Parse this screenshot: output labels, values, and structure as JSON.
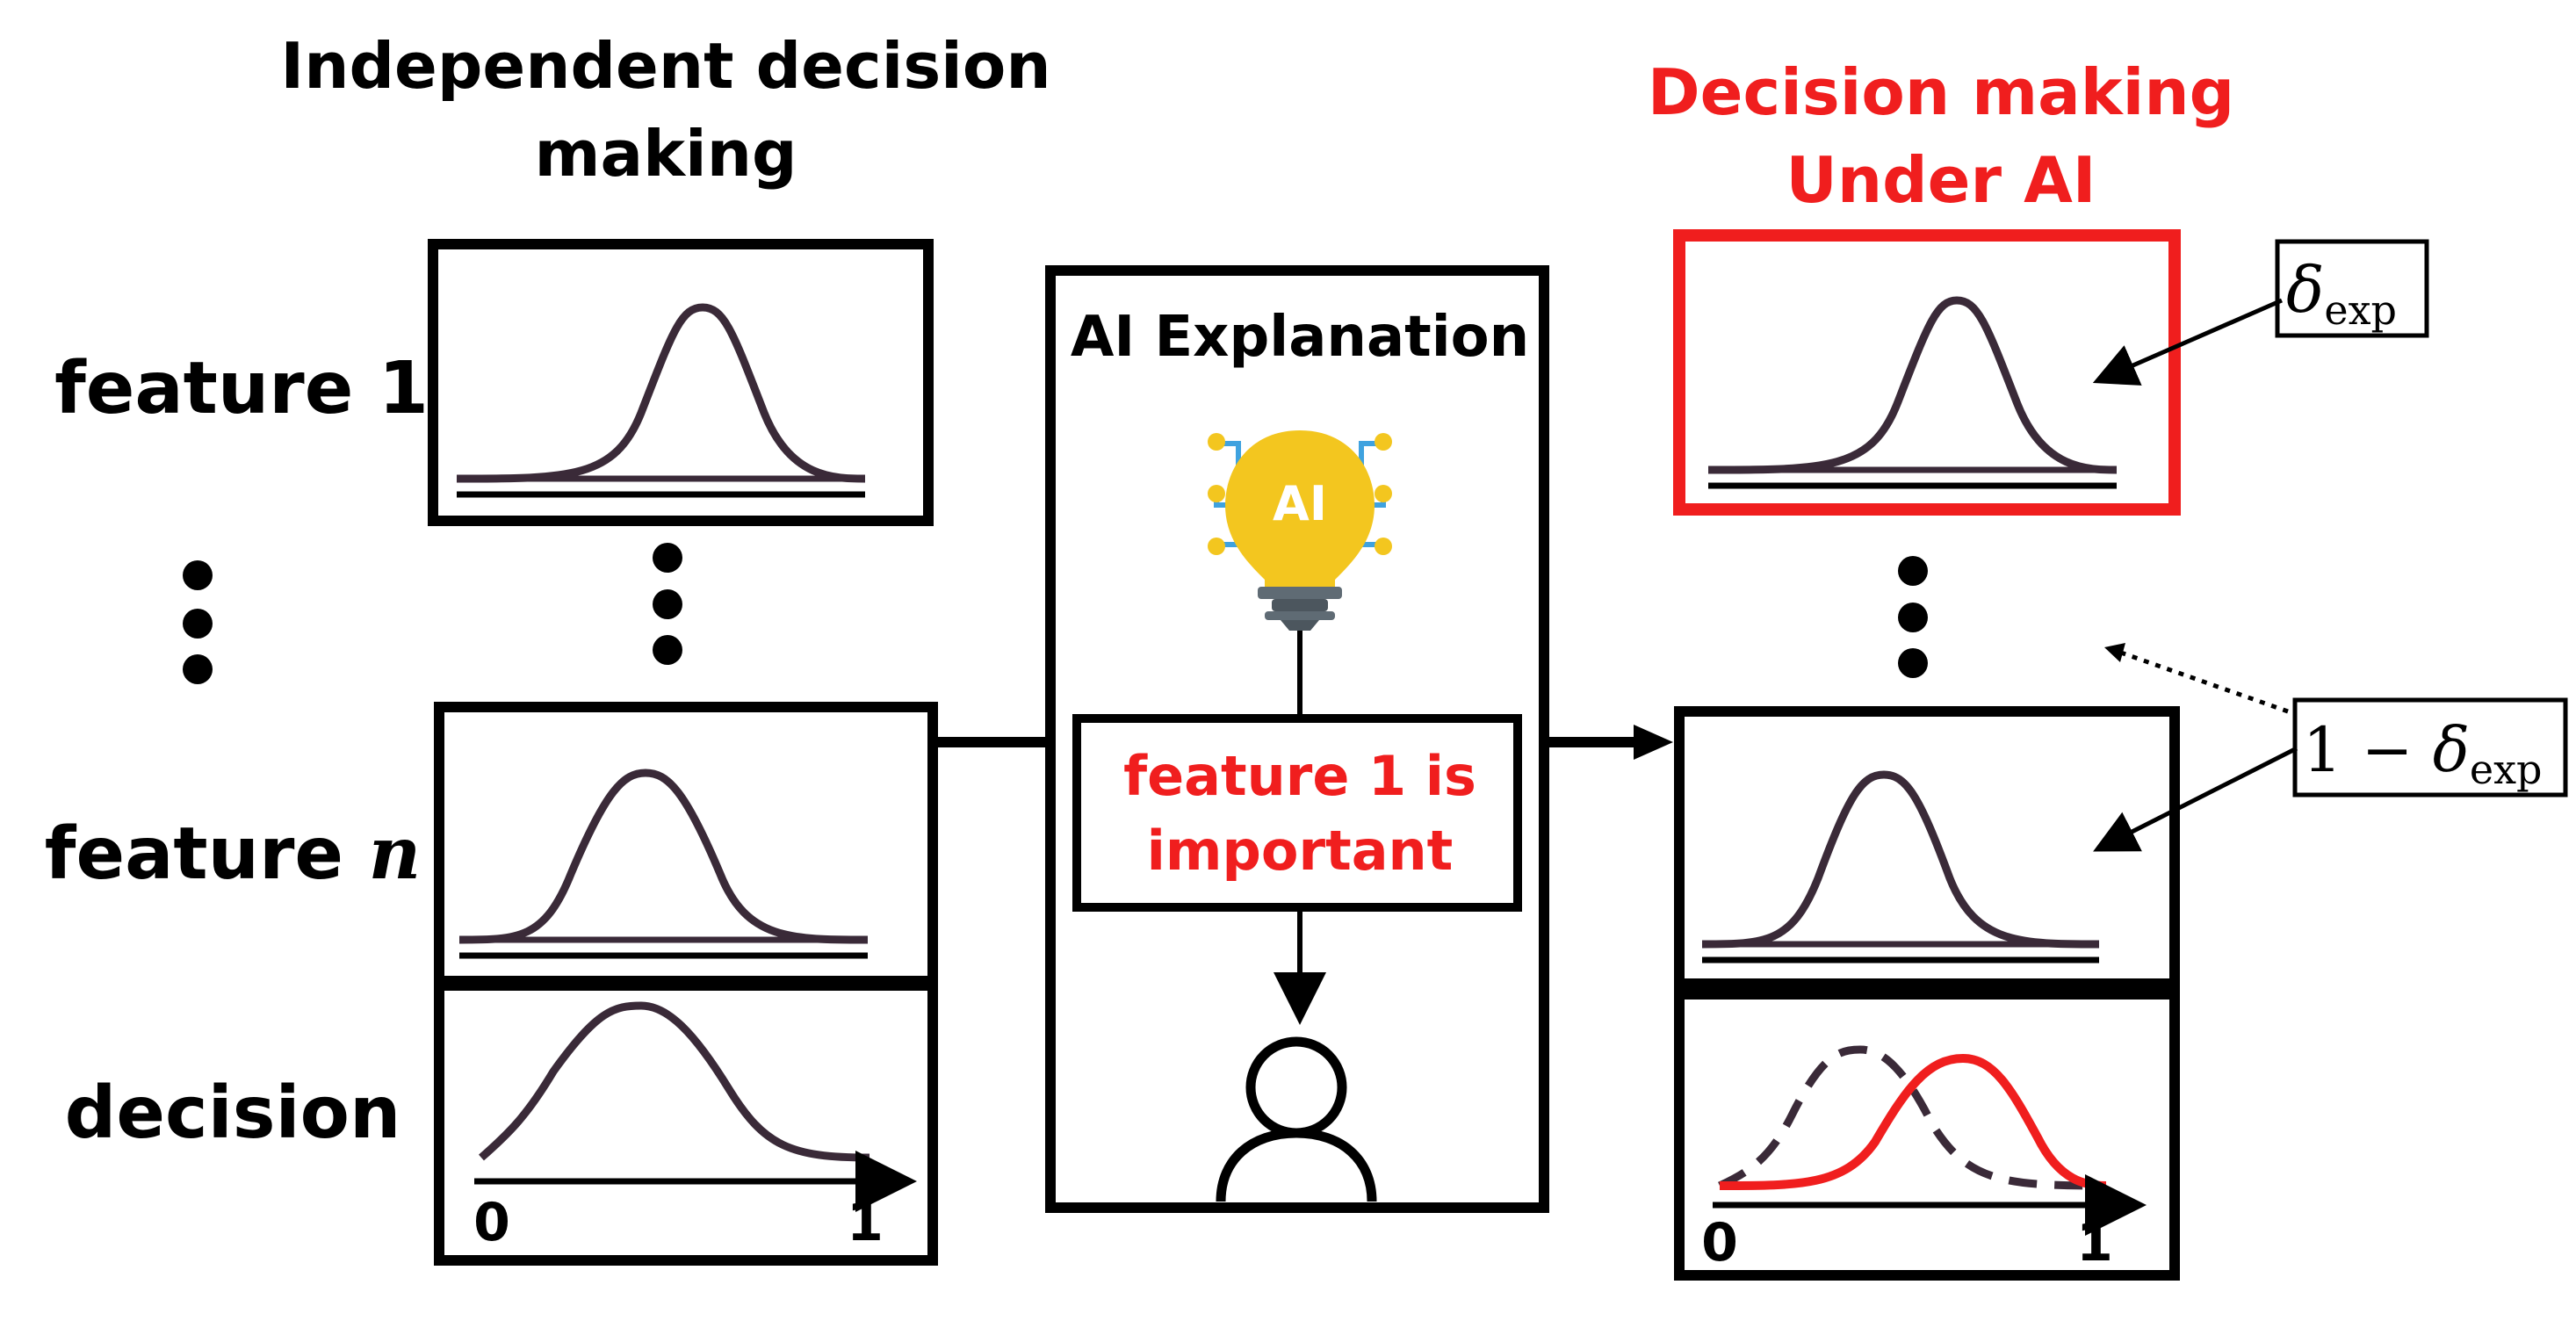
{
  "left_column": {
    "title_line1": "Independent decision",
    "title_line2": "making"
  },
  "right_column": {
    "title_line1": "Decision making",
    "title_line2": "Under AI"
  },
  "labels": {
    "feature_1": "feature 1",
    "feature_n_prefix": "feature ",
    "feature_n_var": "n",
    "decision": "decision"
  },
  "axis": {
    "left_min": "0",
    "left_max": "1",
    "right_min": "0",
    "right_max": "1"
  },
  "ai_panel": {
    "title": "AI Explanation",
    "icon_text": "AI",
    "message_line1": "feature 1 is",
    "message_line2": "important"
  },
  "annotations": {
    "delta_top_symbol": "δ",
    "delta_top_sub": "exp",
    "delta_bottom_prefix": "1 − ",
    "delta_bottom_symbol": "δ",
    "delta_bottom_sub": "exp"
  },
  "colors": {
    "accent_red": "#f01e1e",
    "curve": "#3a2a38",
    "line": "#000000",
    "bulb_yellow": "#f3c61f",
    "bulb_base": "#5f6b74",
    "circuit_blue": "#3fa2df",
    "node_yellow": "#f3c61f"
  }
}
